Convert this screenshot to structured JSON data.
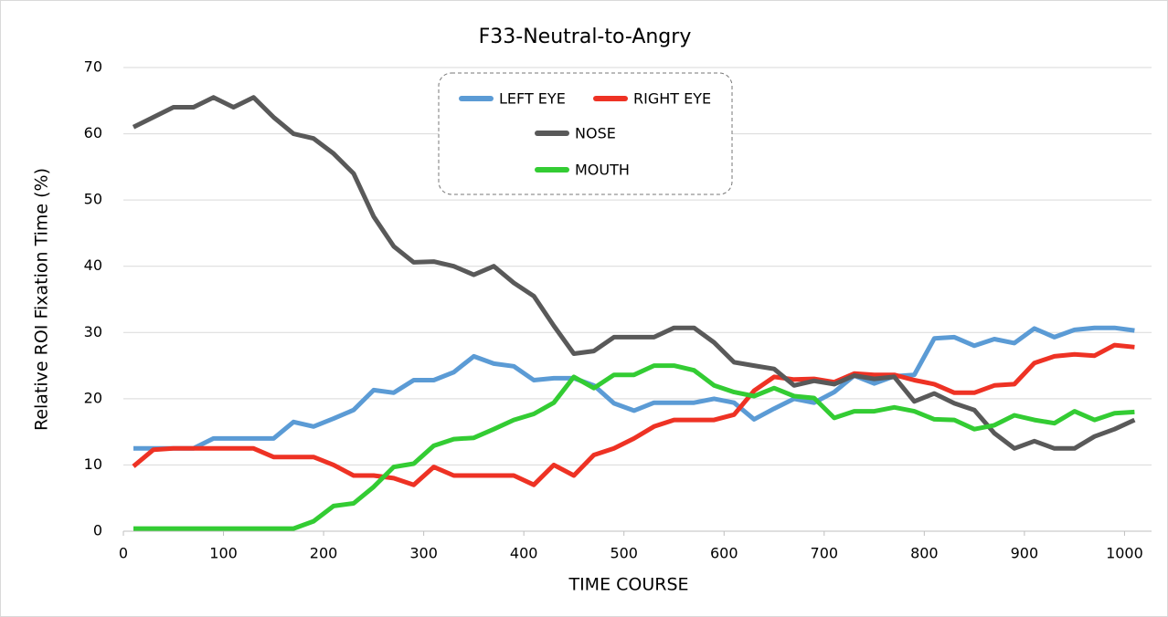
{
  "chart_data": {
    "type": "line",
    "title": "F33-Neutral-to-Angry",
    "x_label": "TIME  COURSE",
    "y_label": "Relative  ROI  Fixation  Time  (%)",
    "x": [
      10,
      30,
      50,
      70,
      90,
      110,
      130,
      150,
      170,
      190,
      210,
      230,
      250,
      270,
      290,
      310,
      330,
      350,
      370,
      390,
      410,
      430,
      450,
      470,
      490,
      510,
      530,
      550,
      570,
      590,
      610,
      630,
      650,
      670,
      690,
      710,
      730,
      750,
      770,
      790,
      810,
      830,
      850,
      870,
      890,
      910,
      930,
      950,
      970,
      990,
      1010
    ],
    "series": [
      {
        "name": "LEFT EYE",
        "color": "#5b9bd5",
        "values": [
          12.5,
          12.5,
          12.5,
          12.5,
          14,
          14,
          14,
          14,
          16.5,
          15.8,
          17,
          18.3,
          21.3,
          20.9,
          22.8,
          22.8,
          24,
          26.4,
          25.3,
          24.9,
          22.8,
          23.1,
          23.1,
          22,
          19.3,
          18.2,
          19.4,
          19.4,
          19.4,
          20,
          19.4,
          16.9,
          18.5,
          20,
          19.4,
          21,
          23.5,
          22.3,
          23.4,
          23.6,
          29.1,
          29.3,
          28,
          29,
          28.4,
          30.6,
          29.3,
          30.4,
          30.7,
          30.7,
          30.3
        ]
      },
      {
        "name": "RIGHT EYE",
        "color": "#ee3224",
        "values": [
          9.8,
          12.3,
          12.5,
          12.5,
          12.5,
          12.5,
          12.5,
          11.2,
          11.2,
          11.2,
          10,
          8.4,
          8.4,
          8,
          7,
          9.7,
          8.4,
          8.4,
          8.4,
          8.4,
          7,
          10,
          8.4,
          11.5,
          12.5,
          14,
          15.8,
          16.8,
          16.8,
          16.8,
          17.6,
          21.2,
          23.3,
          22.9,
          23,
          22.5,
          23.8,
          23.6,
          23.6,
          22.8,
          22.2,
          20.9,
          20.9,
          22,
          22.2,
          25.4,
          26.4,
          26.7,
          26.5,
          28.1,
          27.8
        ]
      },
      {
        "name": "NOSE",
        "color": "#595959",
        "values": [
          61,
          62.5,
          64,
          64,
          65.5,
          64,
          65.5,
          62.5,
          60,
          59.3,
          57,
          54,
          47.5,
          43,
          40.6,
          40.7,
          40,
          38.7,
          40,
          37.5,
          35.5,
          31,
          26.8,
          27.2,
          29.3,
          29.3,
          29.3,
          30.7,
          30.7,
          28.5,
          25.5,
          25,
          24.5,
          22,
          22.7,
          22.2,
          23.5,
          23,
          23.3,
          19.6,
          20.8,
          19.3,
          18.3,
          14.8,
          12.5,
          13.6,
          12.5,
          12.5,
          14.3,
          15.4,
          16.8
        ]
      },
      {
        "name": "MOUTH",
        "color": "#33cc33",
        "values": [
          0.4,
          0.4,
          0.4,
          0.4,
          0.4,
          0.4,
          0.4,
          0.4,
          0.4,
          1.5,
          3.8,
          4.2,
          6.7,
          9.7,
          10.2,
          12.9,
          13.9,
          14.1,
          15.4,
          16.8,
          17.7,
          19.4,
          23.3,
          21.6,
          23.6,
          23.6,
          25,
          25,
          24.3,
          22,
          21,
          20.4,
          21.6,
          20.4,
          20.1,
          17.1,
          18.1,
          18.1,
          18.7,
          18.1,
          16.9,
          16.8,
          15.4,
          16,
          17.5,
          16.8,
          16.3,
          18.1,
          16.8,
          17.8,
          18
        ]
      }
    ],
    "xlim": [
      0,
      1027
    ],
    "xticks": [
      0,
      100,
      200,
      300,
      400,
      500,
      600,
      700,
      800,
      900,
      1000
    ],
    "ylim": [
      0,
      70
    ],
    "yticks": [
      0,
      10,
      20,
      30,
      40,
      50,
      60,
      70
    ],
    "grid": true,
    "legend": "top-center"
  }
}
